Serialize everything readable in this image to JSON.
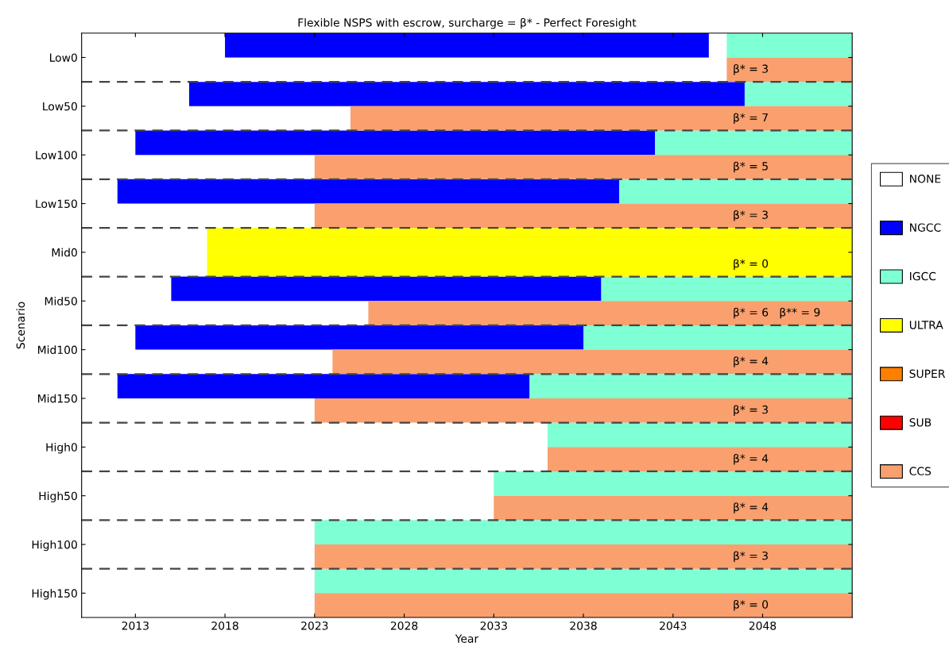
{
  "chart_data": {
    "type": "bar",
    "orientation": "horizontal",
    "title": "Flexible NSPS with escrow, surcharge = β* - Perfect Foresight",
    "xlabel": "Year",
    "ylabel": "Scenario",
    "categories": [
      "Low0",
      null,
      "Low50",
      null,
      "Low100",
      null,
      "Low150",
      null,
      "Mid0",
      null,
      "Mid50",
      null,
      "Mid100",
      null,
      "Mid150",
      null,
      "High0",
      null,
      "High50",
      null,
      "High100",
      null,
      "High150",
      null
    ],
    "xlim": [
      2010,
      2053
    ],
    "xticks": [
      2013,
      2018,
      2023,
      2028,
      2033,
      2038,
      2043,
      2048
    ],
    "series": [
      {
        "name": "NONE",
        "color": "#ffffff",
        "values": [
          null,
          null,
          null,
          null,
          null,
          null,
          null,
          null,
          null,
          null,
          null,
          null,
          null,
          null,
          null,
          null,
          null,
          null,
          null,
          null,
          null,
          null,
          null,
          null
        ]
      },
      {
        "name": "NGCC",
        "color": "#0000ff",
        "base": [
          2018,
          null,
          2016,
          null,
          2013,
          null,
          2012,
          null,
          null,
          null,
          2015,
          null,
          2013,
          null,
          2012,
          null,
          null,
          null,
          null,
          null,
          null,
          null,
          null,
          null
        ],
        "values": [
          27,
          null,
          31,
          null,
          29,
          null,
          28,
          null,
          null,
          null,
          24,
          null,
          25,
          null,
          23,
          null,
          null,
          null,
          null,
          null,
          null,
          null,
          null,
          null
        ]
      },
      {
        "name": "IGCC",
        "color": "#7fffd4",
        "base": [
          2046,
          null,
          2047,
          null,
          2042,
          null,
          2040,
          null,
          null,
          null,
          2039,
          null,
          2038,
          null,
          2035,
          null,
          2036,
          null,
          2033,
          null,
          2023,
          null,
          2023,
          null
        ],
        "values": [
          7,
          null,
          6,
          null,
          11,
          null,
          13,
          null,
          null,
          null,
          14,
          null,
          15,
          null,
          18,
          null,
          17,
          null,
          20,
          null,
          30,
          null,
          30,
          null
        ]
      },
      {
        "name": "ULTRA",
        "color": "#ffff00",
        "base": [
          null,
          null,
          null,
          null,
          null,
          null,
          null,
          null,
          2017,
          2017,
          null,
          null,
          null,
          null,
          null,
          null,
          null,
          null,
          null,
          null,
          null,
          null,
          null,
          null
        ],
        "values": [
          null,
          null,
          null,
          null,
          null,
          null,
          null,
          null,
          36,
          36,
          null,
          null,
          null,
          null,
          null,
          null,
          null,
          null,
          null,
          null,
          null,
          null,
          null,
          null
        ]
      },
      {
        "name": "SUPER",
        "color": "#ff7f00",
        "values": [
          null,
          null,
          null,
          null,
          null,
          null,
          null,
          null,
          null,
          null,
          null,
          null,
          null,
          null,
          null,
          null,
          null,
          null,
          null,
          null,
          null,
          null,
          null,
          null
        ]
      },
      {
        "name": "SUB",
        "color": "#ff0000",
        "values": [
          null,
          null,
          null,
          null,
          null,
          null,
          null,
          null,
          null,
          null,
          null,
          null,
          null,
          null,
          null,
          null,
          null,
          null,
          null,
          null,
          null,
          null,
          null,
          null
        ]
      },
      {
        "name": "CCS",
        "color": "#f9a06e",
        "base": [
          null,
          2046,
          null,
          2025,
          null,
          2023,
          null,
          2023,
          null,
          null,
          null,
          2026,
          null,
          2024,
          null,
          2023,
          null,
          2036,
          null,
          2033,
          null,
          2023,
          null,
          2023
        ],
        "values": [
          null,
          7,
          null,
          28,
          null,
          30,
          null,
          30,
          null,
          null,
          null,
          27,
          null,
          29,
          null,
          30,
          null,
          17,
          null,
          20,
          null,
          30,
          null,
          30
        ]
      }
    ],
    "grid": "y",
    "legend": "right",
    "annotations": [
      "β* = 3",
      "β* = 7",
      "β* = 5",
      "β* = 3",
      "β* = 0",
      "β* = 6   β** = 9",
      "β* = 4",
      "β* = 3",
      "β* = 4",
      "β* = 4",
      "β* = 3",
      "β* = 0"
    ]
  }
}
